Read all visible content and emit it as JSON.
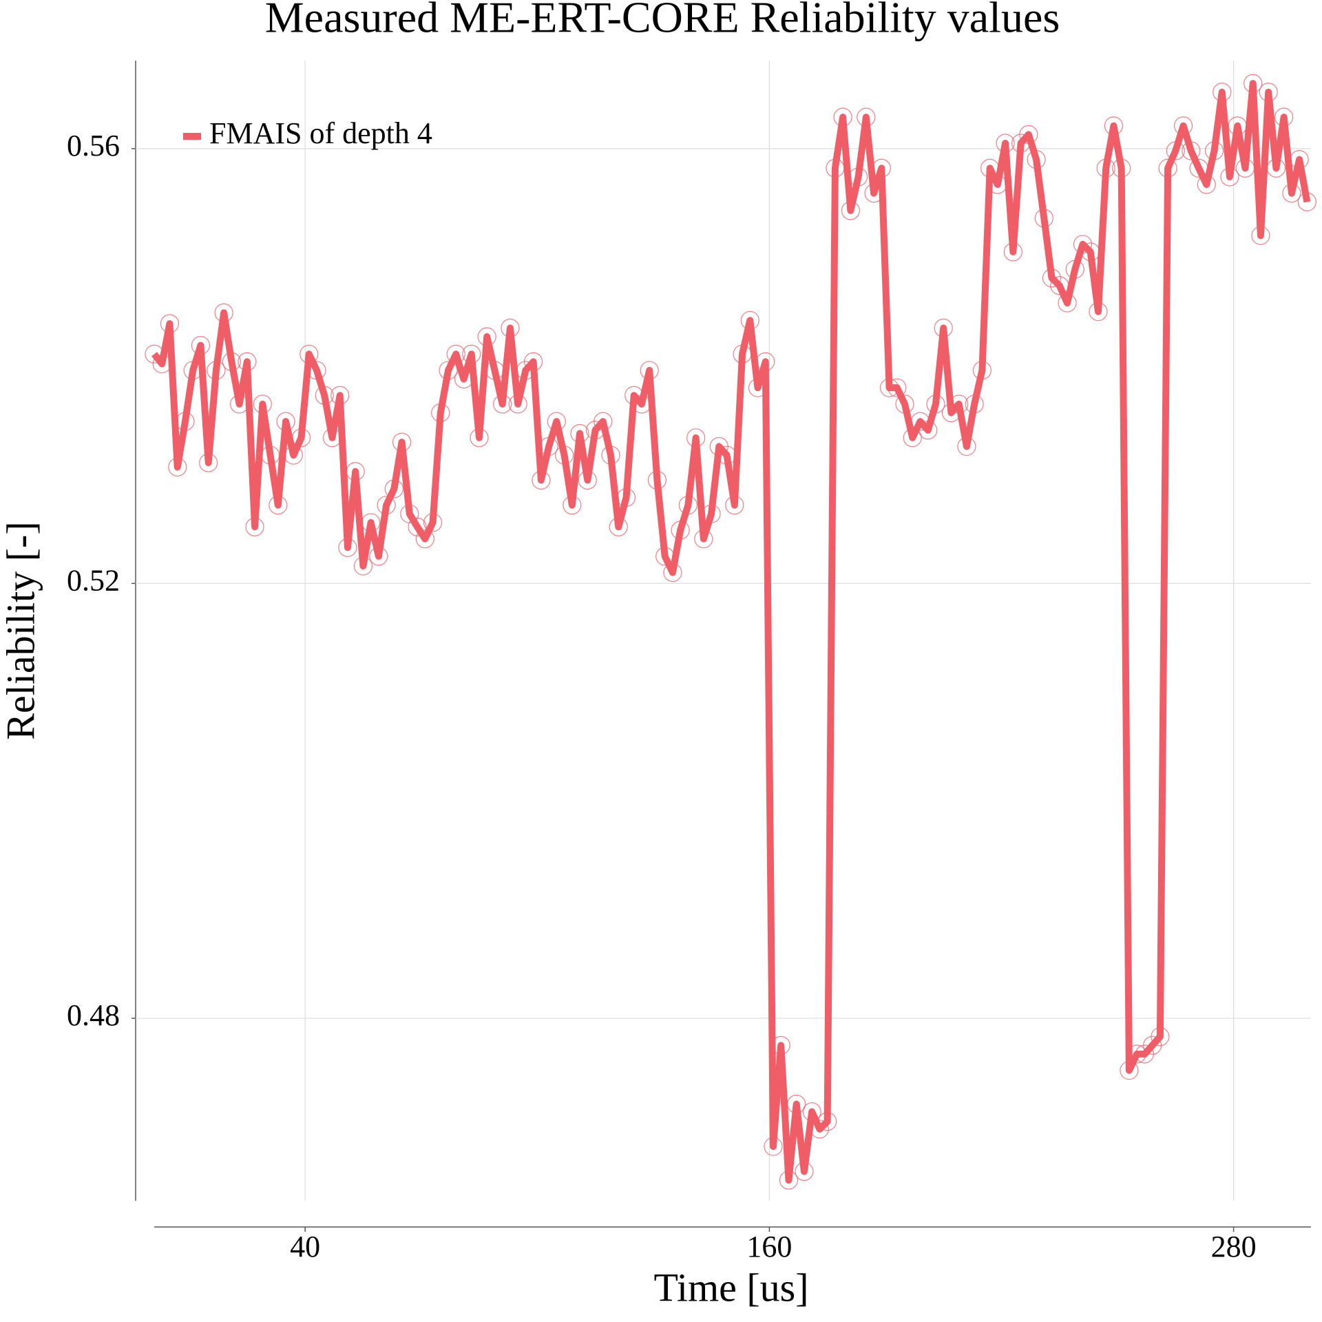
{
  "chart_data": {
    "type": "line",
    "title": "Measured ME-ERT-CORE Reliability values",
    "x_label": "Time [us]",
    "y_label": "Reliability [-]",
    "xlim": [
      1,
      300
    ],
    "ylim": [
      0.4632,
      0.5681
    ],
    "xticks": [
      40,
      160,
      280
    ],
    "yticks": [
      0.48,
      0.52,
      0.56
    ],
    "grid": true,
    "legend": "upper left",
    "x": [
      1,
      3,
      5,
      7,
      9,
      11,
      13,
      15,
      17,
      19,
      21,
      23,
      25,
      27,
      29,
      31,
      33,
      35,
      37,
      39,
      41,
      43,
      45,
      47,
      49,
      51,
      53,
      55,
      57,
      59,
      61,
      63,
      65,
      67,
      69,
      71,
      73,
      75,
      77,
      79,
      81,
      83,
      85,
      87,
      89,
      91,
      93,
      95,
      97,
      99,
      101,
      103,
      105,
      107,
      109,
      111,
      113,
      115,
      117,
      119,
      121,
      123,
      125,
      127,
      129,
      131,
      133,
      135,
      137,
      139,
      141,
      143,
      145,
      147,
      149,
      151,
      153,
      155,
      157,
      159,
      161,
      163,
      165,
      167,
      169,
      171,
      173,
      175,
      177,
      179,
      181,
      183,
      185,
      187,
      189,
      191,
      193,
      195,
      197,
      199,
      201,
      203,
      205,
      207,
      209,
      211,
      213,
      215,
      217,
      219,
      221,
      223,
      225,
      227,
      229,
      231,
      233,
      235,
      237,
      239,
      241,
      243,
      245,
      247,
      249,
      251,
      253,
      255,
      257,
      259,
      261,
      263,
      265,
      267,
      269,
      271,
      273,
      275,
      277,
      279,
      281,
      283,
      285,
      287,
      289,
      291,
      293,
      295,
      297,
      299
    ],
    "series": [
      {
        "name": "FMAIS of depth 4",
        "color": "#ef5d67",
        "values": [
          0.5411,
          0.5402,
          0.5439,
          0.5307,
          0.5349,
          0.5396,
          0.5419,
          0.5311,
          0.5396,
          0.5449,
          0.5404,
          0.5365,
          0.5404,
          0.5252,
          0.5365,
          0.5318,
          0.5272,
          0.5349,
          0.5318,
          0.5334,
          0.5411,
          0.5396,
          0.5373,
          0.5334,
          0.5373,
          0.5233,
          0.5303,
          0.5216,
          0.5256,
          0.5225,
          0.5272,
          0.5287,
          0.533,
          0.5264,
          0.5252,
          0.5241,
          0.5256,
          0.5357,
          0.5396,
          0.5411,
          0.5388,
          0.5411,
          0.5334,
          0.5427,
          0.5396,
          0.5365,
          0.5435,
          0.5365,
          0.5396,
          0.5404,
          0.5295,
          0.5326,
          0.5349,
          0.5318,
          0.5272,
          0.5338,
          0.5295,
          0.5341,
          0.5349,
          0.5318,
          0.5252,
          0.5279,
          0.5373,
          0.5365,
          0.5396,
          0.5295,
          0.5225,
          0.521,
          0.5249,
          0.5272,
          0.5334,
          0.5241,
          0.5264,
          0.5326,
          0.5318,
          0.5272,
          0.5411,
          0.5442,
          0.538,
          0.5404,
          0.4682,
          0.4775,
          0.4651,
          0.4721,
          0.4659,
          0.4714,
          0.4698,
          0.4705,
          0.5582,
          0.5629,
          0.5543,
          0.5574,
          0.5629,
          0.5559,
          0.5582,
          0.538,
          0.538,
          0.5365,
          0.5334,
          0.5349,
          0.5341,
          0.5365,
          0.5435,
          0.5357,
          0.5365,
          0.5326,
          0.5365,
          0.5396,
          0.5582,
          0.5567,
          0.5605,
          0.5505,
          0.5605,
          0.5613,
          0.559,
          0.5536,
          0.5481,
          0.5474,
          0.5458,
          0.5489,
          0.5512,
          0.5505,
          0.545,
          0.5582,
          0.5621,
          0.5582,
          0.4752,
          0.4767,
          0.4767,
          0.4775,
          0.4783,
          0.5582,
          0.5598,
          0.5621,
          0.5598,
          0.5582,
          0.5567,
          0.5598,
          0.5652,
          0.5574,
          0.5621,
          0.5582,
          0.566,
          0.552,
          0.5652,
          0.5582,
          0.5629,
          0.5559,
          0.559,
          0.5551
        ]
      }
    ]
  }
}
